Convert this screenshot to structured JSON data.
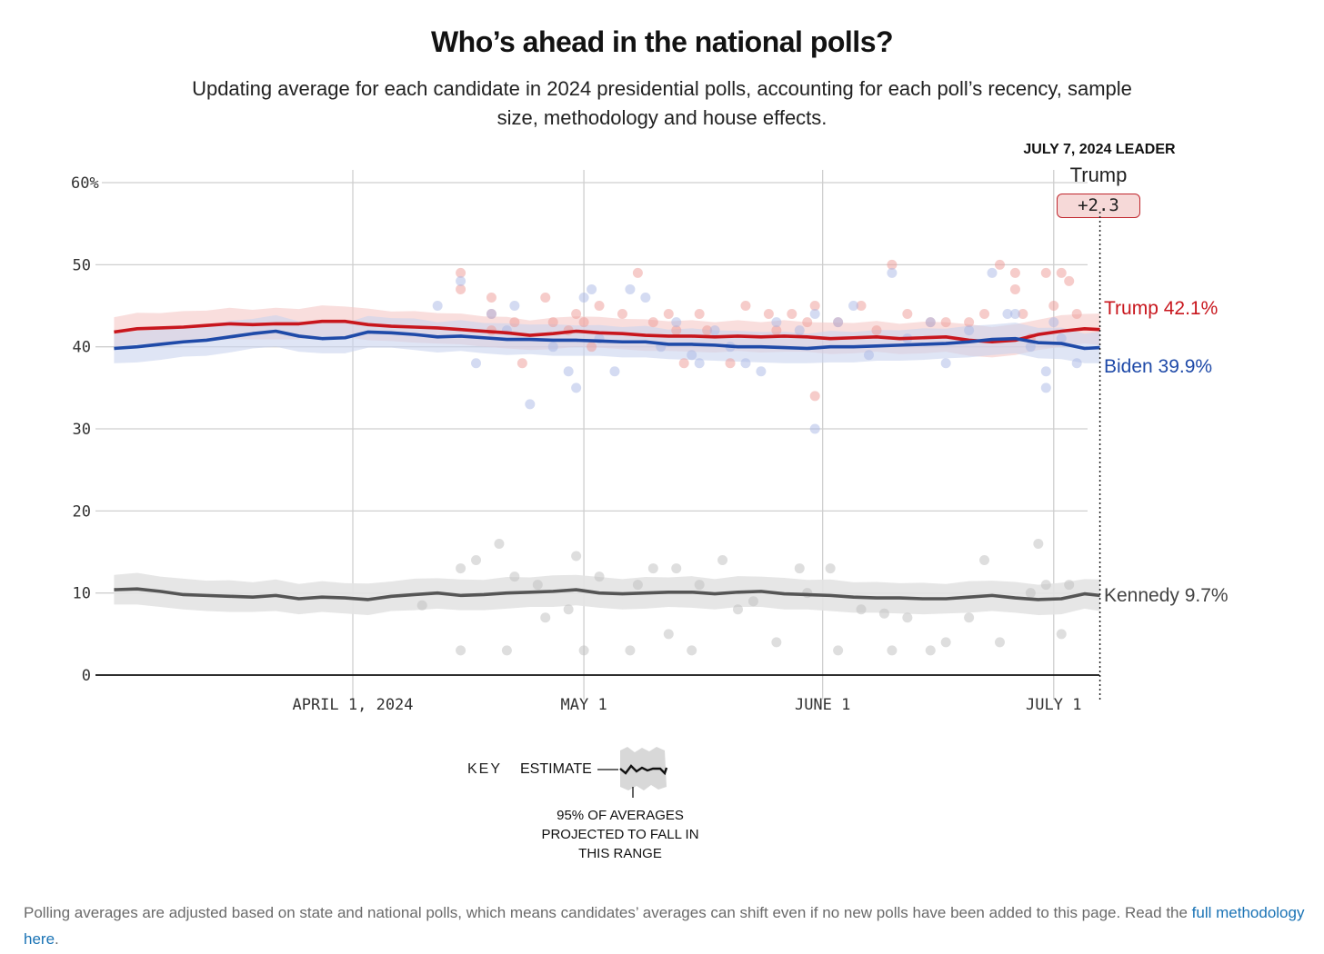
{
  "header": {
    "title": "Who’s ahead in the national polls?",
    "subtitle": "Updating average for each candidate in 2024 presidential polls, accounting for each poll’s recency, sample size, methodology and house effects."
  },
  "leader": {
    "heading": "JULY 7, 2024 LEADER",
    "name": "Trump",
    "margin": "+2.3"
  },
  "key": {
    "label": "KEY",
    "estimate": "ESTIMATE",
    "range": "95% OF AVERAGES PROJECTED TO FALL IN THIS RANGE"
  },
  "footnote": {
    "text": "Polling averages are adjusted based on state and national polls, which means candidates’ averages can shift even if no new polls have been added to this page. Read the ",
    "link": "full methodology here",
    "end": "."
  },
  "chart_data": {
    "type": "line",
    "title": "Who’s ahead in the national polls?",
    "xlabel": "",
    "ylabel": "",
    "ylim": [
      0,
      60
    ],
    "yticks": [
      0,
      10,
      20,
      30,
      40,
      50,
      60
    ],
    "ytick_labels": [
      "0",
      "10",
      "20",
      "30",
      "40",
      "50",
      "60%"
    ],
    "xrange_days": [
      -31,
      97
    ],
    "x_origin": "2024-04-01",
    "xticks": [
      {
        "day": 0,
        "label": "APRIL 1, 2024"
      },
      {
        "day": 30,
        "label": "MAY 1"
      },
      {
        "day": 61,
        "label": "JUNE 1"
      },
      {
        "day": 91,
        "label": "JULY 1"
      }
    ],
    "end_day": 97,
    "grid": true,
    "colors": {
      "Trump": "#c8161d",
      "Biden": "#1f4aa8",
      "Kennedy": "#555555"
    },
    "band_half_width": 1.8,
    "series": [
      {
        "name": "Trump",
        "label": "Trump 42.1%",
        "days": [
          -31,
          -28,
          -25,
          -22,
          -19,
          -16,
          -13,
          -10,
          -7,
          -4,
          -1,
          2,
          5,
          8,
          11,
          14,
          17,
          20,
          23,
          26,
          29,
          32,
          35,
          38,
          41,
          44,
          47,
          50,
          53,
          56,
          59,
          62,
          65,
          68,
          71,
          74,
          77,
          80,
          83,
          86,
          89,
          92,
          95,
          97
        ],
        "values": [
          41.8,
          42.2,
          42.3,
          42.4,
          42.6,
          42.8,
          42.7,
          42.8,
          42.8,
          43.1,
          43.1,
          42.7,
          42.5,
          42.4,
          42.3,
          42.1,
          41.9,
          41.7,
          41.4,
          41.6,
          41.9,
          41.7,
          41.6,
          41.4,
          41.3,
          41.3,
          41.2,
          41.3,
          41.2,
          41.3,
          41.2,
          41.0,
          41.1,
          41.2,
          41.0,
          41.1,
          41.2,
          40.8,
          40.6,
          40.8,
          41.5,
          41.9,
          42.2,
          42.1
        ]
      },
      {
        "name": "Biden",
        "label": "Biden 39.9%",
        "days": [
          -31,
          -28,
          -25,
          -22,
          -19,
          -16,
          -13,
          -10,
          -7,
          -4,
          -1,
          2,
          5,
          8,
          11,
          14,
          17,
          20,
          23,
          26,
          29,
          32,
          35,
          38,
          41,
          44,
          47,
          50,
          53,
          56,
          59,
          62,
          65,
          68,
          71,
          74,
          77,
          80,
          83,
          86,
          89,
          92,
          95,
          97
        ],
        "values": [
          39.8,
          40.0,
          40.3,
          40.6,
          40.8,
          41.2,
          41.6,
          41.9,
          41.3,
          41.0,
          41.1,
          41.8,
          41.7,
          41.5,
          41.2,
          41.3,
          41.1,
          40.9,
          40.9,
          40.8,
          40.8,
          40.7,
          40.6,
          40.6,
          40.3,
          40.3,
          40.2,
          40.0,
          40.0,
          39.9,
          39.8,
          40.0,
          40.0,
          40.1,
          40.2,
          40.3,
          40.4,
          40.6,
          40.9,
          41.0,
          40.5,
          40.4,
          39.8,
          39.9
        ]
      },
      {
        "name": "Kennedy",
        "label": "Kennedy 9.7%",
        "days": [
          -31,
          -28,
          -25,
          -22,
          -19,
          -16,
          -13,
          -10,
          -7,
          -4,
          -1,
          2,
          5,
          8,
          11,
          14,
          17,
          20,
          23,
          26,
          29,
          32,
          35,
          38,
          41,
          44,
          47,
          50,
          53,
          56,
          59,
          62,
          65,
          68,
          71,
          74,
          77,
          80,
          83,
          86,
          89,
          92,
          95,
          97
        ],
        "values": [
          10.4,
          10.5,
          10.2,
          9.8,
          9.7,
          9.6,
          9.5,
          9.7,
          9.3,
          9.5,
          9.4,
          9.2,
          9.6,
          9.8,
          10.0,
          9.7,
          9.8,
          10.0,
          10.1,
          10.2,
          10.4,
          10.0,
          9.9,
          10.0,
          10.1,
          10.1,
          9.9,
          10.1,
          10.2,
          9.9,
          9.8,
          9.7,
          9.5,
          9.4,
          9.4,
          9.3,
          9.3,
          9.5,
          9.7,
          9.4,
          9.2,
          9.3,
          9.9,
          9.7
        ]
      }
    ],
    "polls": {
      "Trump": [
        [
          14,
          49
        ],
        [
          14,
          47
        ],
        [
          18,
          46
        ],
        [
          18,
          44
        ],
        [
          18,
          42
        ],
        [
          21,
          43
        ],
        [
          22,
          38
        ],
        [
          25,
          46
        ],
        [
          26,
          43
        ],
        [
          28,
          42
        ],
        [
          29,
          44
        ],
        [
          30,
          43
        ],
        [
          31,
          40
        ],
        [
          32,
          45
        ],
        [
          35,
          44
        ],
        [
          37,
          49
        ],
        [
          39,
          43
        ],
        [
          41,
          44
        ],
        [
          42,
          42
        ],
        [
          43,
          38
        ],
        [
          45,
          44
        ],
        [
          46,
          42
        ],
        [
          49,
          38
        ],
        [
          51,
          45
        ],
        [
          54,
          44
        ],
        [
          55,
          42
        ],
        [
          57,
          44
        ],
        [
          59,
          43
        ],
        [
          60,
          45
        ],
        [
          60,
          34
        ],
        [
          63,
          43
        ],
        [
          66,
          45
        ],
        [
          68,
          42
        ],
        [
          70,
          50
        ],
        [
          72,
          44
        ],
        [
          75,
          43
        ],
        [
          77,
          43
        ],
        [
          80,
          43
        ],
        [
          82,
          44
        ],
        [
          84,
          50
        ],
        [
          86,
          49
        ],
        [
          86,
          47
        ],
        [
          87,
          44
        ],
        [
          88,
          41
        ],
        [
          90,
          49
        ],
        [
          91,
          45
        ],
        [
          92,
          49
        ],
        [
          93,
          48
        ],
        [
          94,
          44
        ]
      ],
      "Biden": [
        [
          11,
          45
        ],
        [
          14,
          48
        ],
        [
          16,
          38
        ],
        [
          18,
          44
        ],
        [
          20,
          42
        ],
        [
          21,
          45
        ],
        [
          23,
          33
        ],
        [
          26,
          40
        ],
        [
          28,
          37
        ],
        [
          29,
          35
        ],
        [
          30,
          46
        ],
        [
          31,
          47
        ],
        [
          32,
          41
        ],
        [
          34,
          37
        ],
        [
          36,
          47
        ],
        [
          38,
          46
        ],
        [
          40,
          40
        ],
        [
          42,
          43
        ],
        [
          44,
          39
        ],
        [
          45,
          38
        ],
        [
          47,
          42
        ],
        [
          49,
          40
        ],
        [
          51,
          38
        ],
        [
          53,
          37
        ],
        [
          55,
          43
        ],
        [
          58,
          42
        ],
        [
          60,
          44
        ],
        [
          60,
          30
        ],
        [
          63,
          43
        ],
        [
          65,
          45
        ],
        [
          67,
          39
        ],
        [
          70,
          49
        ],
        [
          72,
          41
        ],
        [
          75,
          43
        ],
        [
          77,
          38
        ],
        [
          80,
          42
        ],
        [
          83,
          49
        ],
        [
          85,
          44
        ],
        [
          86,
          44
        ],
        [
          88,
          40
        ],
        [
          90,
          37
        ],
        [
          90,
          35
        ],
        [
          91,
          43
        ],
        [
          92,
          41
        ],
        [
          94,
          38
        ]
      ],
      "Kennedy": [
        [
          9,
          8.5
        ],
        [
          14,
          13
        ],
        [
          14,
          3
        ],
        [
          16,
          14
        ],
        [
          19,
          16
        ],
        [
          20,
          3
        ],
        [
          21,
          12
        ],
        [
          24,
          11
        ],
        [
          25,
          7
        ],
        [
          28,
          8
        ],
        [
          29,
          14.5
        ],
        [
          30,
          3
        ],
        [
          32,
          12
        ],
        [
          36,
          3
        ],
        [
          37,
          11
        ],
        [
          39,
          13
        ],
        [
          41,
          5
        ],
        [
          42,
          13
        ],
        [
          44,
          3
        ],
        [
          45,
          11
        ],
        [
          48,
          14
        ],
        [
          50,
          8
        ],
        [
          52,
          9
        ],
        [
          55,
          4
        ],
        [
          58,
          13
        ],
        [
          59,
          10
        ],
        [
          62,
          13
        ],
        [
          63,
          3
        ],
        [
          66,
          8
        ],
        [
          69,
          7.5
        ],
        [
          70,
          3
        ],
        [
          72,
          7
        ],
        [
          75,
          3
        ],
        [
          77,
          4
        ],
        [
          80,
          7
        ],
        [
          82,
          14
        ],
        [
          84,
          4
        ],
        [
          88,
          10
        ],
        [
          89,
          16
        ],
        [
          90,
          11
        ],
        [
          92,
          5
        ],
        [
          93,
          11
        ]
      ]
    }
  }
}
